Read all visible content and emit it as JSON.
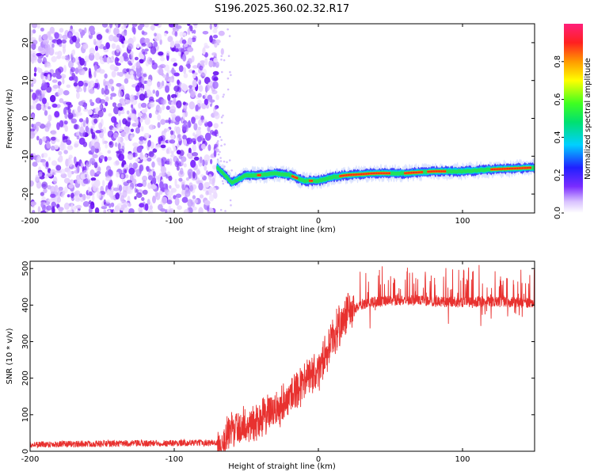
{
  "title": "S196.2025.360.02.32.R17",
  "chart_data": [
    {
      "type": "heatmap",
      "xlabel": "Height of straight line (km)",
      "ylabel": "Frequency (Hz)",
      "xlim": [
        -200,
        150
      ],
      "ylim": [
        -25,
        25
      ],
      "x_ticks": [
        -200,
        -100,
        0,
        100
      ],
      "y_ticks": [
        -20,
        -10,
        0,
        10,
        20
      ],
      "colorbar": {
        "label": "Normalized spectral amplitude",
        "range": [
          0,
          1
        ],
        "ticks": [
          0,
          0.2,
          0.4,
          0.6,
          0.8
        ],
        "tick_labels": [
          "0.0",
          "0.2",
          "0.4",
          "0.6",
          "0.8"
        ]
      },
      "noise_region_x": [
        -200,
        -70
      ],
      "signal_ridge": {
        "x": [
          -70,
          -60,
          -50,
          -40,
          -30,
          -20,
          -10,
          0,
          10,
          20,
          40,
          60,
          80,
          100,
          120,
          150
        ],
        "frequency_hz": [
          -13,
          -17,
          -15,
          -15,
          -14.5,
          -15,
          -16.5,
          -16.5,
          -15.5,
          -15,
          -14.5,
          -14.5,
          -14,
          -14,
          -13.5,
          -13
        ]
      }
    },
    {
      "type": "line",
      "xlabel": "Height of straight line (km)",
      "ylabel": "SNR (10 * v/v)",
      "xlim": [
        -200,
        150
      ],
      "ylim": [
        0,
        520
      ],
      "x_ticks": [
        -200,
        -100,
        0,
        100
      ],
      "y_ticks": [
        0,
        100,
        200,
        300,
        400,
        500
      ],
      "series": [
        {
          "name": "SNR",
          "color": "#e8312f",
          "x_envelope": [
            -200,
            -70,
            -65,
            -60,
            -50,
            -40,
            -30,
            -20,
            -10,
            0,
            10,
            20,
            30,
            40,
            60,
            80,
            100,
            120,
            150
          ],
          "y_envelope": [
            15,
            20,
            30,
            60,
            70,
            90,
            110,
            150,
            190,
            220,
            310,
            380,
            400,
            410,
            415,
            410,
            408,
            410,
            405
          ]
        }
      ]
    }
  ]
}
